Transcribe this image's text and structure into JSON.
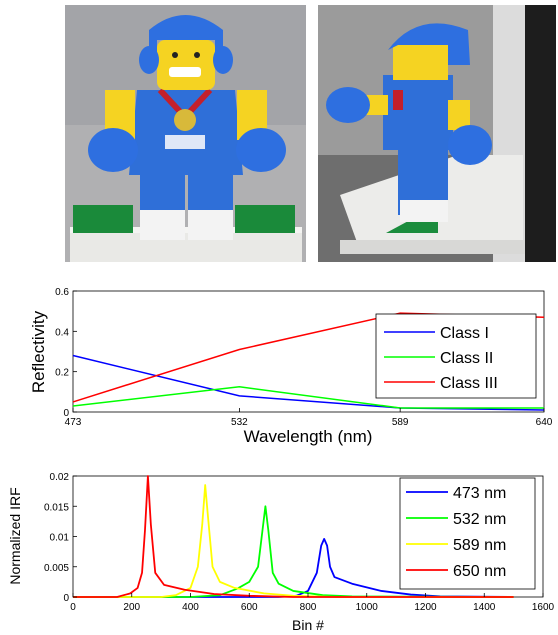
{
  "photos": [
    {
      "name": "boxer-minifigure-front"
    },
    {
      "name": "boxer-minifigure-side"
    }
  ],
  "chart_data": [
    {
      "type": "line",
      "xlabel": "Wavelength (nm)",
      "ylabel": "Reflectivity",
      "x": [
        473,
        532,
        589,
        640
      ],
      "x_ticks": [
        "473",
        "532",
        "589",
        "640"
      ],
      "xlim": [
        473,
        640
      ],
      "ylim": [
        0,
        0.6
      ],
      "y_ticks": [
        "0",
        "0.2",
        "0.4",
        "0.6"
      ],
      "legend_position": "bottom-right",
      "series": [
        {
          "name": "Class I",
          "color": "#0000ff",
          "values": [
            0.28,
            0.08,
            0.02,
            0.01
          ]
        },
        {
          "name": "Class II",
          "color": "#00ff00",
          "values": [
            0.03,
            0.125,
            0.02,
            0.02
          ]
        },
        {
          "name": "Class III",
          "color": "#ff0000",
          "values": [
            0.05,
            0.31,
            0.49,
            0.47
          ]
        }
      ]
    },
    {
      "type": "line",
      "xlabel": "Bin #",
      "ylabel": "Normalized IRF",
      "xlim": [
        0,
        1600
      ],
      "ylim": [
        0,
        0.02
      ],
      "x_ticks": [
        "0",
        "200",
        "400",
        "600",
        "800",
        "1000",
        "1200",
        "1400",
        "1600"
      ],
      "y_ticks": [
        "0",
        "0.005",
        "0.01",
        "0.015",
        "0.02"
      ],
      "legend_position": "top-right",
      "series": [
        {
          "name": "473 nm",
          "color": "#0000ff",
          "x": [
            0,
            700,
            760,
            800,
            830,
            845,
            855,
            865,
            875,
            890,
            950,
            1050,
            1150,
            1250,
            1500
          ],
          "values": [
            0,
            0,
            0.0002,
            0.001,
            0.004,
            0.0085,
            0.0096,
            0.0085,
            0.005,
            0.0033,
            0.0022,
            0.001,
            0.0004,
            0.0001,
            0
          ]
        },
        {
          "name": "532 nm",
          "color": "#00ff00",
          "x": [
            0,
            400,
            500,
            560,
            600,
            630,
            645,
            655,
            665,
            680,
            700,
            750,
            850,
            950,
            1500
          ],
          "values": [
            0,
            0,
            0.0003,
            0.0014,
            0.0025,
            0.005,
            0.011,
            0.015,
            0.011,
            0.004,
            0.0022,
            0.001,
            0.0003,
            0.0001,
            0
          ]
        },
        {
          "name": "589 nm",
          "color": "#ffff00",
          "x": [
            0,
            300,
            350,
            400,
            425,
            440,
            450,
            460,
            475,
            500,
            550,
            650,
            750,
            900,
            1500
          ],
          "values": [
            0,
            0,
            0.0003,
            0.0015,
            0.005,
            0.012,
            0.0185,
            0.013,
            0.005,
            0.0025,
            0.0015,
            0.0006,
            0.0002,
            0,
            0
          ]
        },
        {
          "name": "650 nm",
          "color": "#ff0000",
          "x": [
            0,
            150,
            195,
            220,
            235,
            245,
            255,
            265,
            280,
            310,
            380,
            480,
            600,
            750,
            1500
          ],
          "values": [
            0,
            0,
            0.0006,
            0.0015,
            0.004,
            0.011,
            0.02,
            0.012,
            0.004,
            0.002,
            0.0012,
            0.0005,
            0.0002,
            0,
            0
          ]
        }
      ]
    }
  ]
}
